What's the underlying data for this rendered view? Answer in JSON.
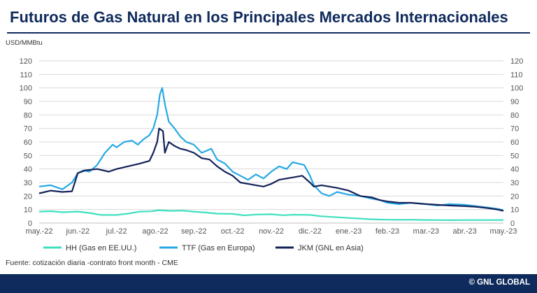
{
  "title": "Futuros de Gas Natural en los Principales Mercados Internacionales",
  "source_note": "Fuente: cotización diaria -contrato front month - CME",
  "brand": "© GNL GLOBAL",
  "colors": {
    "title": "#0f2a5c",
    "footer_bar": "#0f2a5c",
    "hh": "#3fe0c0",
    "ttf": "#27a9e3",
    "jkm": "#14225a",
    "grid": "#d9d9d9"
  },
  "chart_data": {
    "type": "line",
    "ylabel": "USD/MMBtu",
    "ylim": [
      0,
      120
    ],
    "yticks": [
      0,
      10,
      20,
      30,
      40,
      50,
      60,
      70,
      80,
      90,
      100,
      110,
      120
    ],
    "secondary_yaxis": true,
    "grid": "horizontal",
    "legend_position": "bottom",
    "x_tick_labels": [
      "may.-22",
      "jun.-22",
      "jul.-22",
      "ago.-22",
      "sep.-22",
      "oct.-22",
      "nov.-22",
      "dic.-22",
      "ene.-23",
      "feb.-23",
      "mar.-23",
      "abr.-23",
      "may.-23"
    ],
    "series": [
      {
        "name": "HH (Gas en EE.UU.)",
        "color": "#3fe0c0",
        "points": [
          [
            0,
            8.5
          ],
          [
            0.3,
            8.8
          ],
          [
            0.6,
            8.0
          ],
          [
            1.0,
            8.5
          ],
          [
            1.3,
            7.5
          ],
          [
            1.6,
            6.0
          ],
          [
            2.0,
            6.0
          ],
          [
            2.3,
            7.0
          ],
          [
            2.6,
            8.5
          ],
          [
            2.9,
            8.7
          ],
          [
            3.1,
            9.5
          ],
          [
            3.4,
            9.0
          ],
          [
            3.7,
            9.2
          ],
          [
            4.0,
            8.5
          ],
          [
            4.3,
            7.8
          ],
          [
            4.6,
            7.0
          ],
          [
            5.0,
            6.8
          ],
          [
            5.3,
            5.7
          ],
          [
            5.6,
            6.3
          ],
          [
            6.0,
            6.5
          ],
          [
            6.3,
            5.8
          ],
          [
            6.6,
            6.2
          ],
          [
            7.0,
            6.0
          ],
          [
            7.3,
            5.0
          ],
          [
            7.6,
            4.5
          ],
          [
            8.0,
            3.8
          ],
          [
            8.3,
            3.3
          ],
          [
            8.6,
            2.8
          ],
          [
            9.0,
            2.5
          ],
          [
            9.3,
            2.4
          ],
          [
            9.6,
            2.5
          ],
          [
            10.0,
            2.3
          ],
          [
            10.3,
            2.2
          ],
          [
            10.6,
            2.1
          ],
          [
            11.0,
            2.2
          ],
          [
            11.3,
            2.2
          ],
          [
            11.6,
            2.2
          ],
          [
            12.0,
            2.3
          ]
        ]
      },
      {
        "name": "TTF (Gas en Europa)",
        "color": "#27a9e3",
        "points": [
          [
            0,
            27
          ],
          [
            0.3,
            28
          ],
          [
            0.6,
            25
          ],
          [
            0.85,
            30
          ],
          [
            1.0,
            37
          ],
          [
            1.15,
            39
          ],
          [
            1.3,
            38
          ],
          [
            1.5,
            43
          ],
          [
            1.7,
            52
          ],
          [
            1.9,
            58
          ],
          [
            2.0,
            56
          ],
          [
            2.2,
            60
          ],
          [
            2.4,
            61
          ],
          [
            2.55,
            58
          ],
          [
            2.7,
            62
          ],
          [
            2.85,
            65
          ],
          [
            2.95,
            70
          ],
          [
            3.05,
            80
          ],
          [
            3.12,
            95
          ],
          [
            3.18,
            100
          ],
          [
            3.25,
            88
          ],
          [
            3.35,
            75
          ],
          [
            3.5,
            70
          ],
          [
            3.65,
            64
          ],
          [
            3.8,
            60
          ],
          [
            4.0,
            58
          ],
          [
            4.2,
            52
          ],
          [
            4.45,
            55
          ],
          [
            4.6,
            47
          ],
          [
            4.8,
            44
          ],
          [
            5.0,
            38
          ],
          [
            5.2,
            35
          ],
          [
            5.4,
            32
          ],
          [
            5.6,
            36
          ],
          [
            5.8,
            33
          ],
          [
            6.0,
            38
          ],
          [
            6.2,
            42
          ],
          [
            6.4,
            40
          ],
          [
            6.55,
            45
          ],
          [
            6.7,
            44
          ],
          [
            6.85,
            43
          ],
          [
            7.0,
            35
          ],
          [
            7.1,
            28
          ],
          [
            7.3,
            22
          ],
          [
            7.5,
            20
          ],
          [
            7.7,
            23
          ],
          [
            8.0,
            21
          ],
          [
            8.3,
            20
          ],
          [
            8.6,
            18
          ],
          [
            8.8,
            17
          ],
          [
            9.0,
            15
          ],
          [
            9.3,
            14
          ],
          [
            9.6,
            15
          ],
          [
            10.0,
            14
          ],
          [
            10.3,
            13
          ],
          [
            10.6,
            14
          ],
          [
            11.0,
            13.5
          ],
          [
            11.3,
            12.5
          ],
          [
            11.6,
            11.5
          ],
          [
            11.85,
            10.5
          ],
          [
            12.0,
            9.5
          ]
        ]
      },
      {
        "name": "JKM (GNL en Asia)",
        "color": "#14225a",
        "points": [
          [
            0,
            22
          ],
          [
            0.3,
            24
          ],
          [
            0.6,
            23
          ],
          [
            0.85,
            23.5
          ],
          [
            1.0,
            37
          ],
          [
            1.2,
            39
          ],
          [
            1.5,
            40
          ],
          [
            1.8,
            38
          ],
          [
            2.0,
            40
          ],
          [
            2.3,
            42
          ],
          [
            2.6,
            44
          ],
          [
            2.85,
            46
          ],
          [
            2.95,
            52
          ],
          [
            3.05,
            60
          ],
          [
            3.1,
            70
          ],
          [
            3.2,
            68
          ],
          [
            3.25,
            52
          ],
          [
            3.35,
            60
          ],
          [
            3.5,
            57
          ],
          [
            3.65,
            55
          ],
          [
            3.8,
            54
          ],
          [
            4.0,
            52
          ],
          [
            4.2,
            48
          ],
          [
            4.4,
            47
          ],
          [
            4.6,
            42
          ],
          [
            4.8,
            38
          ],
          [
            5.0,
            35
          ],
          [
            5.2,
            30
          ],
          [
            5.4,
            29
          ],
          [
            5.6,
            28
          ],
          [
            5.8,
            27
          ],
          [
            6.0,
            29
          ],
          [
            6.2,
            32
          ],
          [
            6.4,
            33
          ],
          [
            6.6,
            34
          ],
          [
            6.8,
            35
          ],
          [
            7.0,
            30
          ],
          [
            7.1,
            27
          ],
          [
            7.3,
            28
          ],
          [
            7.5,
            27
          ],
          [
            7.7,
            26
          ],
          [
            8.0,
            24
          ],
          [
            8.3,
            20
          ],
          [
            8.6,
            19
          ],
          [
            8.8,
            17
          ],
          [
            9.0,
            16
          ],
          [
            9.3,
            15
          ],
          [
            9.6,
            15
          ],
          [
            10.0,
            14
          ],
          [
            10.3,
            13.5
          ],
          [
            10.6,
            13
          ],
          [
            11.0,
            12.5
          ],
          [
            11.3,
            12
          ],
          [
            11.6,
            11
          ],
          [
            11.85,
            10
          ],
          [
            12.0,
            9
          ]
        ]
      }
    ]
  }
}
